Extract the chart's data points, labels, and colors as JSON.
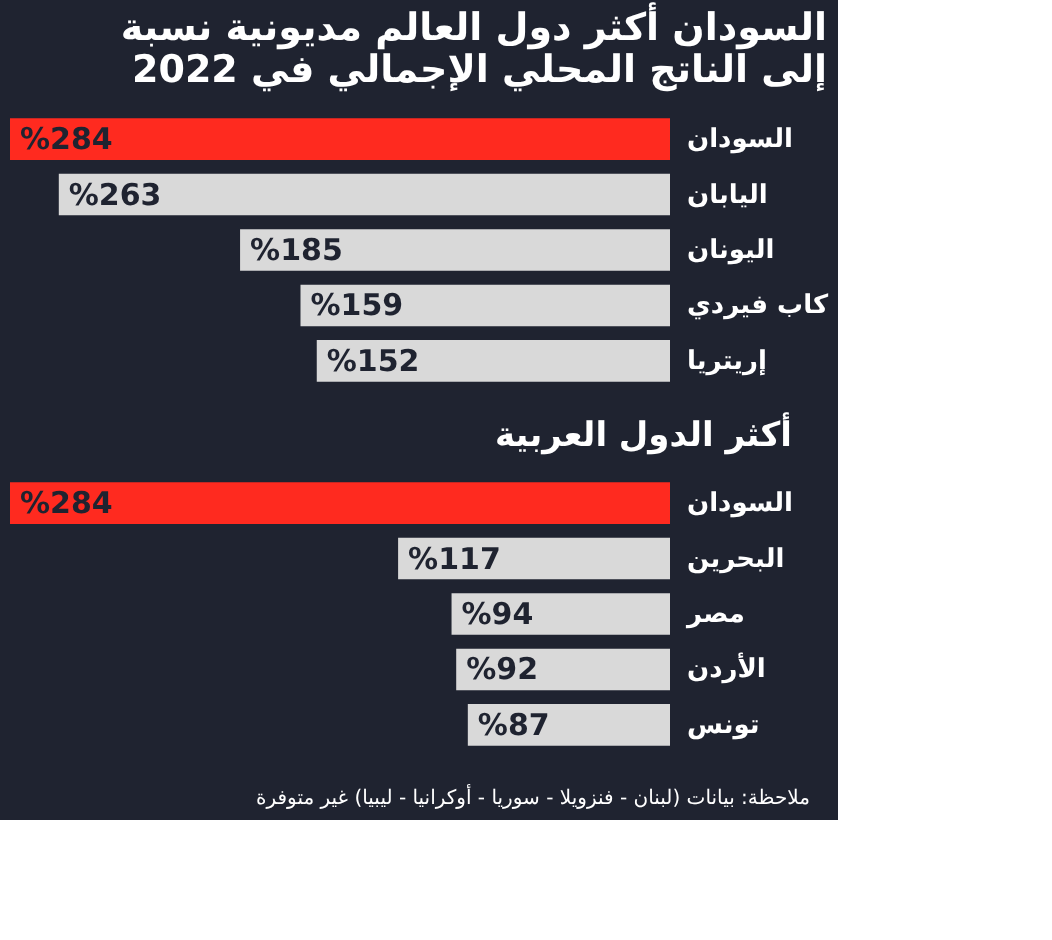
{
  "chart_data": [
    {
      "type": "bar",
      "orientation": "horizontal",
      "title": [
        "السودان أكثر دول العالم مديونية نسبة",
        "إلى الناتج المحلي الإجمالي في 2022"
      ],
      "categories": [
        "السودان",
        "اليابان",
        "اليونان",
        "كاب فيردي",
        "إريتريا"
      ],
      "values": [
        284,
        263,
        185,
        159,
        152
      ],
      "value_labels": [
        "%284",
        "%263",
        "%185",
        "%159",
        "%152"
      ],
      "colors": [
        "#ff2a1f",
        "#d9d9d9",
        "#d9d9d9",
        "#d9d9d9",
        "#d9d9d9"
      ]
    },
    {
      "type": "bar",
      "orientation": "horizontal",
      "title": "أكثر الدول العربية",
      "categories": [
        "السودان",
        "البحرين",
        "مصر",
        "الأردن",
        "تونس"
      ],
      "values": [
        284,
        117,
        94,
        92,
        87
      ],
      "value_labels": [
        "%284",
        "%117",
        "%94",
        "%92",
        "%87"
      ],
      "colors": [
        "#ff2a1f",
        "#d9d9d9",
        "#d9d9d9",
        "#d9d9d9",
        "#d9d9d9"
      ],
      "annotations": [
        "ملاحظة: بيانات (لبنان - فنزويلا - سوريا - أوكرانيا - ليبيا) غير متوفرة"
      ]
    }
  ]
}
